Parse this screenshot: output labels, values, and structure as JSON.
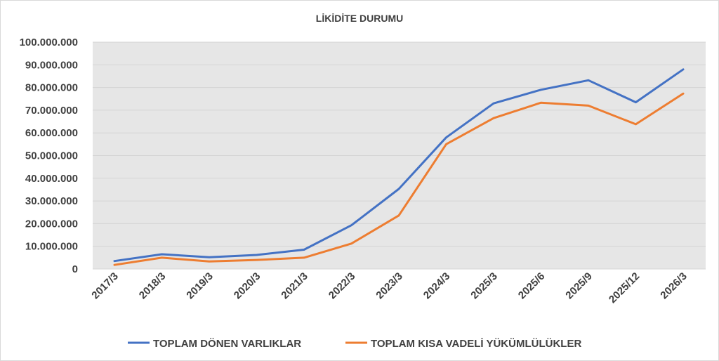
{
  "chart_data": {
    "type": "line",
    "title": "LİKİDİTE DURUMU",
    "xlabel": "",
    "ylabel": "",
    "categories": [
      "2017/3",
      "2018/3",
      "2019/3",
      "2020/3",
      "2021/3",
      "2022/3",
      "2023/3",
      "2024/3",
      "2025/3",
      "2025/6",
      "2025/9",
      "2025/12",
      "2026/3"
    ],
    "y_ticks": [
      "0",
      "10.000.000",
      "20.000.000",
      "30.000.000",
      "40.000.000",
      "50.000.000",
      "60.000.000",
      "70.000.000",
      "80.000.000",
      "90.000.000",
      "100.000.000"
    ],
    "ylim": [
      0,
      100000000
    ],
    "grid": true,
    "legend_position": "bottom",
    "series": [
      {
        "name": "TOPLAM DÖNEN VARLIKLAR",
        "color": "#4472C4",
        "values": [
          3500000,
          6500000,
          5200000,
          6200000,
          8500000,
          19300000,
          35300000,
          58000000,
          73000000,
          79000000,
          83200000,
          73500000,
          88000000
        ]
      },
      {
        "name": "TOPLAM KISA VADELİ YÜKÜMLÜLÜKLER",
        "color": "#ED7D31",
        "values": [
          1800000,
          5000000,
          3300000,
          4000000,
          5000000,
          11200000,
          23600000,
          55000000,
          66500000,
          73300000,
          72000000,
          63800000,
          77300000
        ]
      }
    ]
  }
}
